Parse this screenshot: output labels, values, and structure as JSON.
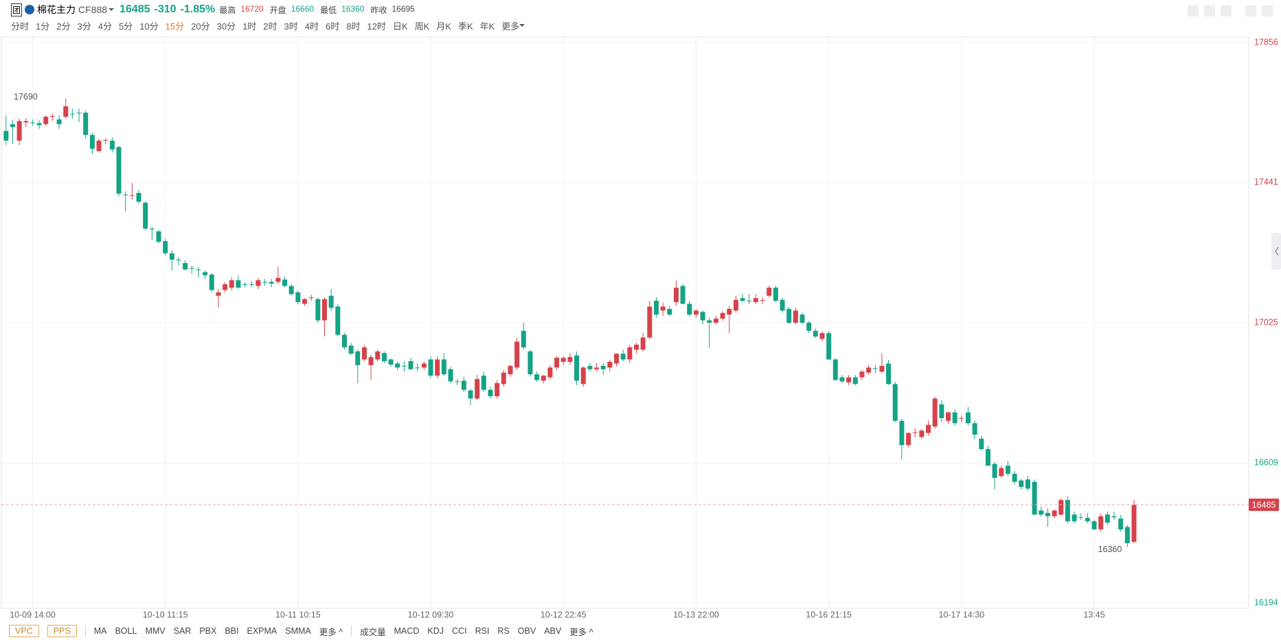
{
  "header": {
    "badge": "团",
    "name": "棉花主力",
    "code": "CF888",
    "price": 16485,
    "change": -310,
    "change_pct": "-1.85%",
    "stats": [
      {
        "label": "最高",
        "value": 16720
      },
      {
        "label": "开盘",
        "value": 16660
      },
      {
        "label": "最低",
        "value": 16360
      },
      {
        "label": "昨收",
        "value": 16695
      }
    ]
  },
  "periods": {
    "items": [
      "分时",
      "1分",
      "2分",
      "3分",
      "4分",
      "5分",
      "10分",
      "15分",
      "20分",
      "30分",
      "1时",
      "2时",
      "3时",
      "4时",
      "6时",
      "8时",
      "12时",
      "日K",
      "周K",
      "月K",
      "季K",
      "年K",
      "更多"
    ],
    "active": "15分"
  },
  "indicators": {
    "main": [
      "VPC",
      "PPS"
    ],
    "overlay": [
      "MA",
      "BOLL",
      "MMV",
      "SAR",
      "PBX",
      "BBI",
      "EXPMA",
      "SMMA",
      "更多 ^"
    ],
    "sub": [
      "成交量",
      "MACD",
      "KDJ",
      "CCI",
      "RSI",
      "RS",
      "OBV",
      "ABV",
      "更多 ^"
    ]
  },
  "chart_data": {
    "type": "candlestick",
    "up_color": "#d6424b",
    "down_color": "#14a386",
    "grid": true,
    "ylim": [
      16194,
      17856
    ],
    "yticks": [
      17856,
      17441,
      17025,
      16609,
      16194
    ],
    "last_price": 16485,
    "annotations": {
      "high": 17690,
      "low": 16360
    },
    "categories": [
      null,
      null,
      null,
      null,
      "10-09 14:00",
      null,
      null,
      null,
      null,
      null,
      null,
      null,
      null,
      null,
      null,
      null,
      null,
      null,
      null,
      null,
      null,
      null,
      null,
      null,
      "10-10 11:15",
      null,
      null,
      null,
      null,
      null,
      null,
      null,
      null,
      null,
      null,
      null,
      null,
      null,
      null,
      null,
      null,
      null,
      null,
      null,
      "10-11 10:15",
      null,
      null,
      null,
      null,
      null,
      null,
      null,
      null,
      null,
      null,
      null,
      null,
      null,
      null,
      null,
      null,
      null,
      null,
      null,
      "10-12 09:30",
      null,
      null,
      null,
      null,
      null,
      null,
      null,
      null,
      null,
      null,
      null,
      null,
      null,
      null,
      null,
      null,
      null,
      null,
      null,
      "10-12 22:45",
      null,
      null,
      null,
      null,
      null,
      null,
      null,
      null,
      null,
      null,
      null,
      null,
      null,
      null,
      null,
      null,
      null,
      null,
      null,
      "10-13 22:00",
      null,
      null,
      null,
      null,
      null,
      null,
      null,
      null,
      null,
      null,
      null,
      null,
      null,
      null,
      null,
      null,
      null,
      null,
      null,
      "10-16 21:15",
      null,
      null,
      null,
      null,
      null,
      null,
      null,
      null,
      null,
      null,
      null,
      null,
      null,
      null,
      null,
      null,
      null,
      null,
      null,
      "10-17 14:30",
      null,
      null,
      null,
      null,
      null,
      null,
      null,
      null,
      null,
      null,
      null,
      null,
      null,
      null,
      null,
      null,
      null,
      null,
      null,
      "13:45",
      null,
      null,
      null,
      null,
      null,
      null
    ],
    "candles": [
      [
        17594,
        17640,
        17552,
        17565
      ],
      [
        17614,
        17628,
        17555,
        17605
      ],
      [
        17565,
        17630,
        17552,
        17623
      ],
      [
        17619,
        17632,
        17605,
        17623
      ],
      [
        17619,
        17628,
        17610,
        17617
      ],
      [
        17617,
        17625,
        17600,
        17611
      ],
      [
        17614,
        17640,
        17608,
        17636
      ],
      [
        17636,
        17645,
        17625,
        17638
      ],
      [
        17628,
        17640,
        17600,
        17614
      ],
      [
        17636,
        17690,
        17630,
        17667
      ],
      [
        17645,
        17660,
        17630,
        17643
      ],
      [
        17648,
        17660,
        17620,
        17646
      ],
      [
        17648,
        17655,
        17570,
        17582
      ],
      [
        17582,
        17590,
        17525,
        17541
      ],
      [
        17534,
        17570,
        17530,
        17565
      ],
      [
        17565,
        17572,
        17555,
        17567
      ],
      [
        17565,
        17575,
        17530,
        17539
      ],
      [
        17546,
        17550,
        17400,
        17408
      ],
      [
        17405,
        17415,
        17355,
        17403
      ],
      [
        17401,
        17440,
        17390,
        17403
      ],
      [
        17410,
        17418,
        17378,
        17384
      ],
      [
        17381,
        17385,
        17300,
        17304
      ],
      [
        17304,
        17310,
        17270,
        17302
      ],
      [
        17296,
        17300,
        17260,
        17265
      ],
      [
        17267,
        17275,
        17225,
        17231
      ],
      [
        17231,
        17240,
        17180,
        17212
      ],
      [
        17212,
        17220,
        17195,
        17210
      ],
      [
        17202,
        17210,
        17180,
        17183
      ],
      [
        17187,
        17195,
        17170,
        17185
      ],
      [
        17183,
        17190,
        17160,
        17181
      ],
      [
        17175,
        17180,
        17155,
        17166
      ],
      [
        17168,
        17172,
        17115,
        17122
      ],
      [
        17105,
        17125,
        17070,
        17115
      ],
      [
        17122,
        17145,
        17115,
        17139
      ],
      [
        17129,
        17160,
        17120,
        17151
      ],
      [
        17151,
        17165,
        17125,
        17129
      ],
      [
        17139,
        17145,
        17130,
        17137
      ],
      [
        17139,
        17148,
        17130,
        17137
      ],
      [
        17134,
        17158,
        17125,
        17151
      ],
      [
        17146,
        17155,
        17135,
        17144
      ],
      [
        17146,
        17155,
        17130,
        17141
      ],
      [
        17146,
        17190,
        17140,
        17158
      ],
      [
        17153,
        17162,
        17130,
        17134
      ],
      [
        17134,
        17140,
        17105,
        17110
      ],
      [
        17115,
        17120,
        17080,
        17086
      ],
      [
        17081,
        17098,
        17075,
        17095
      ],
      [
        17098,
        17108,
        17090,
        17100
      ],
      [
        17095,
        17100,
        17025,
        17032
      ],
      [
        17032,
        17100,
        16985,
        17095
      ],
      [
        17105,
        17125,
        17060,
        17069
      ],
      [
        17073,
        17080,
        16985,
        16989
      ],
      [
        16989,
        16995,
        16945,
        16952
      ],
      [
        16957,
        16965,
        16930,
        16933
      ],
      [
        16940,
        16945,
        16845,
        16899
      ],
      [
        16916,
        16960,
        16910,
        16952
      ],
      [
        16899,
        16930,
        16855,
        16923
      ],
      [
        16916,
        16945,
        16910,
        16940
      ],
      [
        16935,
        16940,
        16905,
        16911
      ],
      [
        16916,
        16920,
        16895,
        16901
      ],
      [
        16904,
        16910,
        16885,
        16892
      ],
      [
        16897,
        16910,
        16880,
        16895
      ],
      [
        16911,
        16920,
        16885,
        16887
      ],
      [
        16892,
        16905,
        16880,
        16890
      ],
      [
        16892,
        16910,
        16885,
        16904
      ],
      [
        16916,
        16925,
        16860,
        16868
      ],
      [
        16868,
        16925,
        16860,
        16916
      ],
      [
        16916,
        16935,
        16868,
        16872
      ],
      [
        16887,
        16895,
        16845,
        16851
      ],
      [
        16851,
        16858,
        16840,
        16849
      ],
      [
        16853,
        16865,
        16820,
        16826
      ],
      [
        16824,
        16830,
        16780,
        16800
      ],
      [
        16800,
        16870,
        16795,
        16858
      ],
      [
        16868,
        16880,
        16820,
        16826
      ],
      [
        16826,
        16835,
        16800,
        16807
      ],
      [
        16807,
        16855,
        16800,
        16846
      ],
      [
        16843,
        16885,
        16835,
        16877
      ],
      [
        16872,
        16900,
        16865,
        16897
      ],
      [
        16892,
        16980,
        16885,
        16969
      ],
      [
        17001,
        17025,
        16945,
        16952
      ],
      [
        16940,
        16945,
        16865,
        16872
      ],
      [
        16872,
        16880,
        16850,
        16855
      ],
      [
        16853,
        16870,
        16845,
        16868
      ],
      [
        16863,
        16900,
        16855,
        16892
      ],
      [
        16892,
        16925,
        16885,
        16921
      ],
      [
        16909,
        16925,
        16900,
        16921
      ],
      [
        16909,
        16935,
        16900,
        16923
      ],
      [
        16928,
        16940,
        16840,
        16853
      ],
      [
        16843,
        16895,
        16835,
        16892
      ],
      [
        16897,
        16905,
        16880,
        16887
      ],
      [
        16887,
        16905,
        16880,
        16892
      ],
      [
        16897,
        16905,
        16870,
        16887
      ],
      [
        16892,
        16915,
        16880,
        16909
      ],
      [
        16904,
        16935,
        16895,
        16933
      ],
      [
        16933,
        16945,
        16910,
        16916
      ],
      [
        16916,
        16960,
        16905,
        16952
      ],
      [
        16945,
        16965,
        16935,
        16960
      ],
      [
        16945,
        16995,
        16940,
        16981
      ],
      [
        16981,
        17090,
        16975,
        17073
      ],
      [
        17090,
        17100,
        17040,
        17049
      ],
      [
        17061,
        17085,
        17045,
        17073
      ],
      [
        17066,
        17075,
        17045,
        17049
      ],
      [
        17086,
        17150,
        17075,
        17129
      ],
      [
        17134,
        17140,
        17080,
        17081
      ],
      [
        17081,
        17090,
        17045,
        17049
      ],
      [
        17049,
        17065,
        17040,
        17061
      ],
      [
        17057,
        17062,
        17020,
        17032
      ],
      [
        17032,
        17040,
        16950,
        17025
      ],
      [
        17025,
        17045,
        17020,
        17037
      ],
      [
        17037,
        17060,
        17030,
        17054
      ],
      [
        17049,
        17075,
        16995,
        17066
      ],
      [
        17061,
        17105,
        17055,
        17093
      ],
      [
        17098,
        17110,
        17085,
        17090
      ],
      [
        17090,
        17110,
        17080,
        17088
      ],
      [
        17086,
        17110,
        17080,
        17098
      ],
      [
        17090,
        17100,
        17080,
        17092
      ],
      [
        17105,
        17135,
        17100,
        17129
      ],
      [
        17129,
        17135,
        17085,
        17090
      ],
      [
        17093,
        17100,
        17055,
        17061
      ],
      [
        17066,
        17072,
        17020,
        17025
      ],
      [
        17025,
        17070,
        17020,
        17061
      ],
      [
        17049,
        17055,
        17020,
        17025
      ],
      [
        17025,
        17030,
        16995,
        17001
      ],
      [
        17001,
        17008,
        16980,
        16984
      ],
      [
        16977,
        17000,
        16970,
        16994
      ],
      [
        16994,
        17000,
        16915,
        16916
      ],
      [
        16916,
        16920,
        16853,
        16855
      ],
      [
        16863,
        16870,
        16845,
        16851
      ],
      [
        16848,
        16870,
        16840,
        16863
      ],
      [
        16863,
        16870,
        16840,
        16843
      ],
      [
        16863,
        16885,
        16855,
        16880
      ],
      [
        16877,
        16900,
        16870,
        16892
      ],
      [
        16890,
        16900,
        16875,
        16889
      ],
      [
        16880,
        16935,
        16875,
        16897
      ],
      [
        16904,
        16915,
        16840,
        16843
      ],
      [
        16843,
        16850,
        16730,
        16734
      ],
      [
        16734,
        16740,
        16620,
        16662
      ],
      [
        16662,
        16700,
        16655,
        16698
      ],
      [
        16698,
        16712,
        16685,
        16700
      ],
      [
        16686,
        16710,
        16680,
        16705
      ],
      [
        16698,
        16735,
        16690,
        16722
      ],
      [
        16717,
        16805,
        16710,
        16800
      ],
      [
        16783,
        16795,
        16730,
        16742
      ],
      [
        16734,
        16762,
        16725,
        16759
      ],
      [
        16759,
        16768,
        16720,
        16727
      ],
      [
        16740,
        16750,
        16730,
        16742
      ],
      [
        16759,
        16775,
        16720,
        16727
      ],
      [
        16727,
        16735,
        16680,
        16693
      ],
      [
        16681,
        16690,
        16645,
        16650
      ],
      [
        16650,
        16660,
        16600,
        16601
      ],
      [
        16606,
        16612,
        16530,
        16565
      ],
      [
        16570,
        16600,
        16565,
        16594
      ],
      [
        16601,
        16615,
        16570,
        16577
      ],
      [
        16577,
        16585,
        16545,
        16553
      ],
      [
        16557,
        16562,
        16530,
        16538
      ],
      [
        16560,
        16570,
        16525,
        16533
      ],
      [
        16553,
        16560,
        16455,
        16456
      ],
      [
        16468,
        16480,
        16450,
        16456
      ],
      [
        16461,
        16475,
        16420,
        16451
      ],
      [
        16451,
        16470,
        16445,
        16468
      ],
      [
        16456,
        16505,
        16450,
        16499
      ],
      [
        16499,
        16510,
        16430,
        16436
      ],
      [
        16456,
        16465,
        16430,
        16436
      ],
      [
        16448,
        16460,
        16440,
        16446
      ],
      [
        16446,
        16460,
        16430,
        16436
      ],
      [
        16436,
        16440,
        16410,
        16412
      ],
      [
        16412,
        16460,
        16405,
        16451
      ],
      [
        16456,
        16465,
        16425,
        16432
      ],
      [
        16451,
        16465,
        16440,
        16448
      ],
      [
        16444,
        16455,
        16405,
        16412
      ],
      [
        16419,
        16425,
        16360,
        16371
      ],
      [
        16375,
        16500,
        16370,
        16485
      ]
    ]
  }
}
